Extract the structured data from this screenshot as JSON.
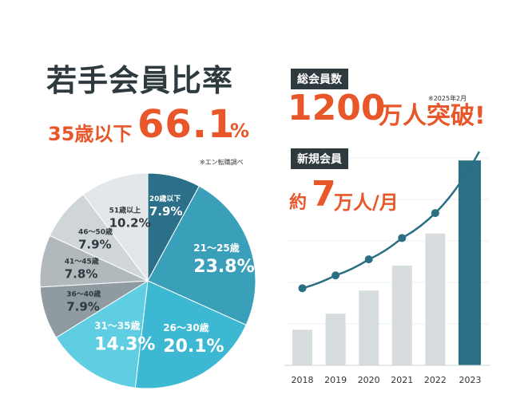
{
  "left": {
    "title": "若手会員比率",
    "subtitle_prefix": "35歳以下",
    "subtitle_value": "66.1",
    "subtitle_unit": "%",
    "note": "※エン転職調べ"
  },
  "right": {
    "total_label": "総会員数",
    "total_note": "※2025年2月",
    "total_value": "1200",
    "total_suffix": "万人突破!",
    "new_label": "新規会員",
    "new_prefix": "約",
    "new_value": "7",
    "new_suffix": "万人/月"
  },
  "colors": {
    "accent": "#e8572a",
    "dark": "#2f3a3f",
    "bar_gray": "#d7dcdf",
    "bar_highlight": "#2b6f85",
    "line": "#2b6f85"
  },
  "chart_data": [
    {
      "type": "pie",
      "title": "若手会員比率",
      "slices": [
        {
          "label": "20歳以下",
          "value": 7.9,
          "color": "#2b7088"
        },
        {
          "label": "21～25歳",
          "value": 23.8,
          "color": "#3a9fb8"
        },
        {
          "label": "26～30歳",
          "value": 20.1,
          "color": "#3cb8d3"
        },
        {
          "label": "31～35歳",
          "value": 14.3,
          "color": "#5fcee3"
        },
        {
          "label": "36～40歳",
          "value": 7.9,
          "color": "#8f9ba0"
        },
        {
          "label": "41～45歳",
          "value": 7.8,
          "color": "#b1b9bd"
        },
        {
          "label": "46～50歳",
          "value": 7.9,
          "color": "#cfd5d8"
        },
        {
          "label": "51歳以上",
          "value": 10.2,
          "color": "#e3e7e9"
        }
      ]
    },
    {
      "type": "bar",
      "categories": [
        "2018",
        "2019",
        "2020",
        "2021",
        "2022",
        "2023"
      ],
      "values": [
        20,
        29,
        42,
        56,
        74,
        115
      ],
      "line_values": [
        20,
        29,
        38,
        50,
        64,
        100
      ],
      "ylim": [
        0,
        120
      ],
      "highlight": "2023"
    }
  ]
}
